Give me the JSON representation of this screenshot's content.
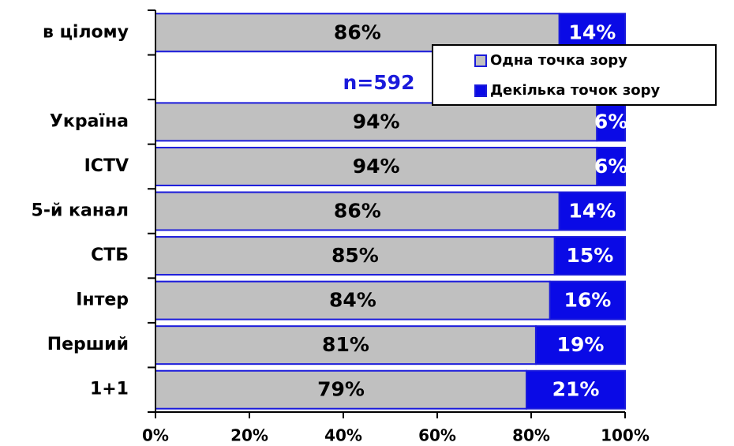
{
  "chart_data": {
    "type": "stacked-barh",
    "categories": [
      "в цілому",
      null,
      "Україна",
      "ICTV",
      "5-й канал",
      "СТБ",
      "Інтер",
      "Перший",
      "1+1"
    ],
    "series": [
      {
        "name": "Одна точка зору",
        "color": "#c0c0c0",
        "values": [
          86,
          null,
          94,
          94,
          86,
          85,
          84,
          81,
          79
        ],
        "value_labels": [
          "86%",
          null,
          "94%",
          "94%",
          "86%",
          "85%",
          "84%",
          "81%",
          "79%"
        ]
      },
      {
        "name": "Декілька точок зору",
        "color": "#0a0ae6",
        "values": [
          14,
          null,
          6,
          6,
          14,
          15,
          16,
          19,
          21
        ],
        "value_labels": [
          "14%",
          null,
          "6%",
          "6%",
          "14%",
          "15%",
          "16%",
          "19%",
          "21%"
        ]
      }
    ],
    "annotations": [
      "n=592"
    ],
    "xlim": [
      0,
      100
    ],
    "xticks": [
      {
        "value": 0,
        "label": "0%"
      },
      {
        "value": 20,
        "label": "20%"
      },
      {
        "value": 40,
        "label": "40%"
      },
      {
        "value": 60,
        "label": "60%"
      },
      {
        "value": 80,
        "label": "80%"
      },
      {
        "value": 100,
        "label": "100%"
      }
    ],
    "legend": "upper right"
  }
}
